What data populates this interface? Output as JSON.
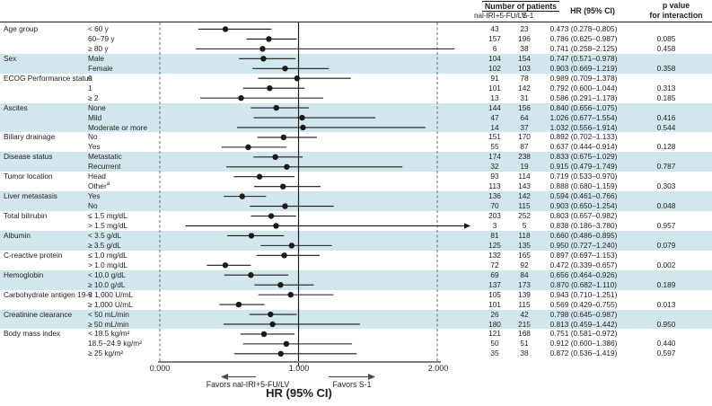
{
  "header": {
    "number_of_patients": "Number of patients",
    "arm1": "nal-IRI+5-FU/LV",
    "arm2": "S-1",
    "hr": "HR (95% CI)",
    "p_line1": "p value",
    "p_line2": "for interaction"
  },
  "footer": {
    "favors_left": "Favors nal-IRI+5-FU/LV",
    "favors_right": "Favors S-1",
    "xlabel": "HR (95% CI)"
  },
  "chart_data": {
    "type": "forest",
    "dash": "–",
    "x_ticks": [
      "0.000",
      "1.000",
      "2.000"
    ],
    "x_range": [
      0,
      2
    ],
    "reference_line": 1.0,
    "colors": {
      "band": "#d2e7ed",
      "marker": "#1a1a1a",
      "axis": "#7d7d7d"
    },
    "legend_note": "shaded bands alternate by subgroup category",
    "groups": [
      {
        "label": "Age group",
        "rows": [
          {
            "subgroup": "< 60 y",
            "n1": "43",
            "n2": "23",
            "hr": "0.473",
            "low": "0.278",
            "high": "0.805",
            "p": ""
          },
          {
            "subgroup": "60–79 y",
            "n1": "157",
            "n2": "196",
            "hr": "0.786",
            "low": "0.625",
            "high": "0.987",
            "p": "0.085"
          },
          {
            "subgroup": "≥ 80 y",
            "n1": "6",
            "n2": "38",
            "hr": "0.741",
            "low": "0.258",
            "high": "2.125",
            "p": "0.458"
          }
        ]
      },
      {
        "label": "Sex",
        "rows": [
          {
            "subgroup": "Male",
            "n1": "104",
            "n2": "154",
            "hr": "0.747",
            "low": "0.571",
            "high": "0.978",
            "p": ""
          },
          {
            "subgroup": "Female",
            "n1": "102",
            "n2": "103",
            "hr": "0.903",
            "low": "0.669",
            "high": "1.219",
            "p": "0.358"
          }
        ]
      },
      {
        "label": "ECOG Performance status",
        "rows": [
          {
            "subgroup": "0",
            "n1": "91",
            "n2": "78",
            "hr": "0.989",
            "low": "0.709",
            "high": "1.378",
            "p": ""
          },
          {
            "subgroup": "1",
            "n1": "101",
            "n2": "142",
            "hr": "0.792",
            "low": "0.600",
            "high": "1.044",
            "p": "0.313"
          },
          {
            "subgroup": "≥ 2",
            "n1": "13",
            "n2": "31",
            "hr": "0.586",
            "low": "0.291",
            "high": "1.178",
            "p": "0.185"
          }
        ]
      },
      {
        "label": "Ascites",
        "rows": [
          {
            "subgroup": "None",
            "n1": "144",
            "n2": "156",
            "hr": "0.840",
            "low": "0.656",
            "high": "1.075",
            "p": ""
          },
          {
            "subgroup": "Mild",
            "n1": "47",
            "n2": "64",
            "hr": "1.026",
            "low": "0.677",
            "high": "1.554",
            "p": "0.416"
          },
          {
            "subgroup": "Moderate or more",
            "n1": "14",
            "n2": "37",
            "hr": "1.032",
            "low": "0.556",
            "high": "1.914",
            "p": "0.544"
          }
        ]
      },
      {
        "label": "Biliary drainage",
        "rows": [
          {
            "subgroup": "No",
            "n1": "151",
            "n2": "170",
            "hr": "0.892",
            "low": "0.702",
            "high": "1.133",
            "p": ""
          },
          {
            "subgroup": "Yes",
            "n1": "55",
            "n2": "87",
            "hr": "0.637",
            "low": "0.444",
            "high": "0.914",
            "p": "0.128"
          }
        ]
      },
      {
        "label": "Disease status",
        "rows": [
          {
            "subgroup": "Metastatic",
            "n1": "174",
            "n2": "238",
            "hr": "0.833",
            "low": "0.675",
            "high": "1.029",
            "p": ""
          },
          {
            "subgroup": "Recurrent",
            "n1": "32",
            "n2": "19",
            "hr": "0.915",
            "low": "0.479",
            "high": "1.749",
            "p": "0.787"
          }
        ]
      },
      {
        "label": "Tumor location",
        "rows": [
          {
            "subgroup": "Head",
            "n1": "93",
            "n2": "114",
            "hr": "0.719",
            "low": "0.533",
            "high": "0.970",
            "p": ""
          },
          {
            "subgroup": "Other",
            "sup": "a",
            "n1": "113",
            "n2": "143",
            "hr": "0.888",
            "low": "0.680",
            "high": "1.159",
            "p": "0.303"
          }
        ]
      },
      {
        "label": "Liver metastasis",
        "rows": [
          {
            "subgroup": "Yes",
            "n1": "136",
            "n2": "142",
            "hr": "0.594",
            "low": "0.461",
            "high": "0.766",
            "p": ""
          },
          {
            "subgroup": "No",
            "n1": "70",
            "n2": "115",
            "hr": "0.903",
            "low": "0.650",
            "high": "1.254",
            "p": "0.048"
          }
        ]
      },
      {
        "label": "Total bilirubin",
        "rows": [
          {
            "subgroup": "≤ 1.5 mg/dL",
            "n1": "203",
            "n2": "252",
            "hr": "0.803",
            "low": "0.657",
            "high": "0.982",
            "p": ""
          },
          {
            "subgroup": "> 1.5 mg/dL",
            "n1": "3",
            "n2": "5",
            "hr": "0.838",
            "low": "0.186",
            "high": "3.780",
            "p": "0.957"
          }
        ]
      },
      {
        "label": "Albumin",
        "rows": [
          {
            "subgroup": "< 3.5 g/dL",
            "n1": "81",
            "n2": "118",
            "hr": "0.660",
            "low": "0.486",
            "high": "0.895",
            "p": ""
          },
          {
            "subgroup": "≥ 3.5 g/dL",
            "n1": "125",
            "n2": "135",
            "hr": "0.950",
            "low": "0.727",
            "high": "1.240",
            "p": "0.079"
          }
        ]
      },
      {
        "label": "C-reactive protein",
        "rows": [
          {
            "subgroup": "≤ 1.0 mg/dL",
            "n1": "132",
            "n2": "165",
            "hr": "0.897",
            "low": "0.697",
            "high": "1.153",
            "p": ""
          },
          {
            "subgroup": "> 1.0 mg/dL",
            "n1": "72",
            "n2": "92",
            "hr": "0.472",
            "low": "0.339",
            "high": "0.657",
            "p": "0.002"
          }
        ]
      },
      {
        "label": "Hemoglobin",
        "rows": [
          {
            "subgroup": "< 10.0 g/dL",
            "n1": "69",
            "n2": "84",
            "hr": "0.656",
            "low": "0.464",
            "high": "0.926",
            "p": ""
          },
          {
            "subgroup": "≥ 10.0 g/dL",
            "n1": "137",
            "n2": "173",
            "hr": "0.870",
            "low": "0.682",
            "high": "1.110",
            "p": "0.189"
          }
        ]
      },
      {
        "label": "Carbohydrate antigen 19-9",
        "rows": [
          {
            "subgroup": "< 1,000 U/mL",
            "n1": "105",
            "n2": "139",
            "hr": "0.943",
            "low": "0.710",
            "high": "1.251",
            "p": ""
          },
          {
            "subgroup": "≥ 1,000 U/mL",
            "n1": "101",
            "n2": "115",
            "hr": "0.569",
            "low": "0.429",
            "high": "0.755",
            "p": "0.013"
          }
        ]
      },
      {
        "label": "Creatinine clearance",
        "rows": [
          {
            "subgroup": "< 50 mL/min",
            "n1": "26",
            "n2": "42",
            "hr": "0.798",
            "low": "0.645",
            "high": "0.987",
            "p": ""
          },
          {
            "subgroup": "≥ 50 mL/min",
            "n1": "180",
            "n2": "215",
            "hr": "0.813",
            "low": "0.459",
            "high": "1.442",
            "p": "0.950"
          }
        ]
      },
      {
        "label": "Body mass index",
        "rows": [
          {
            "subgroup": "< 18.5 kg/m²",
            "n1": "121",
            "n2": "168",
            "hr": "0.751",
            "low": "0.581",
            "high": "0.972",
            "p": ""
          },
          {
            "subgroup": "18.5–24.9 kg/m²",
            "n1": "50",
            "n2": "51",
            "hr": "0.912",
            "low": "0.600",
            "high": "1.386",
            "p": "0.440"
          },
          {
            "subgroup": "≥ 25 kg/m²",
            "n1": "35",
            "n2": "38",
            "hr": "0.872",
            "low": "0.536",
            "high": "1.419",
            "p": "0.597"
          }
        ]
      }
    ]
  }
}
